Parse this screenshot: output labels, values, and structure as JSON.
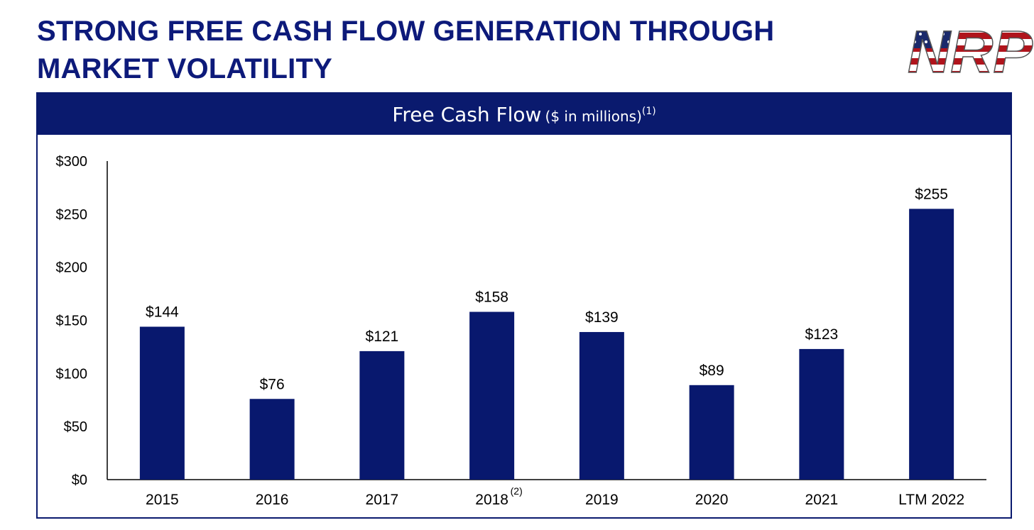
{
  "page": {
    "title_line1": "STRONG FREE CASH FLOW GENERATION THROUGH",
    "title_line2": "MARKET VOLATILITY",
    "logo_text": "NRP"
  },
  "colors": {
    "brand_navy": "#0a1a6e",
    "title_blue": "#0d1a7a",
    "bar": "#08186e",
    "flag_red": "#b0141c"
  },
  "panel": {
    "header_title": "Free Cash Flow",
    "header_unit": "($ in millions)",
    "header_note": "(1)"
  },
  "chart_data": {
    "type": "bar",
    "title": "Free Cash Flow ($ in millions) (1)",
    "categories": [
      "2015",
      "2016",
      "2017",
      "2018",
      "2019",
      "2020",
      "2021",
      "LTM 2022"
    ],
    "category_notes": [
      "",
      "",
      "",
      "(2)",
      "",
      "",
      "",
      ""
    ],
    "values": [
      144,
      76,
      121,
      158,
      139,
      89,
      123,
      255
    ],
    "data_labels": [
      "$144",
      "$76",
      "$121",
      "$158",
      "$139",
      "$89",
      "$123",
      "$255"
    ],
    "ylim": [
      0,
      300
    ],
    "yticks": [
      0,
      50,
      100,
      150,
      200,
      250,
      300
    ],
    "ytick_labels": [
      "$0",
      "$50",
      "$100",
      "$150",
      "$200",
      "$250",
      "$300"
    ],
    "xlabel": "",
    "ylabel": "",
    "grid": false,
    "legend": "none"
  }
}
